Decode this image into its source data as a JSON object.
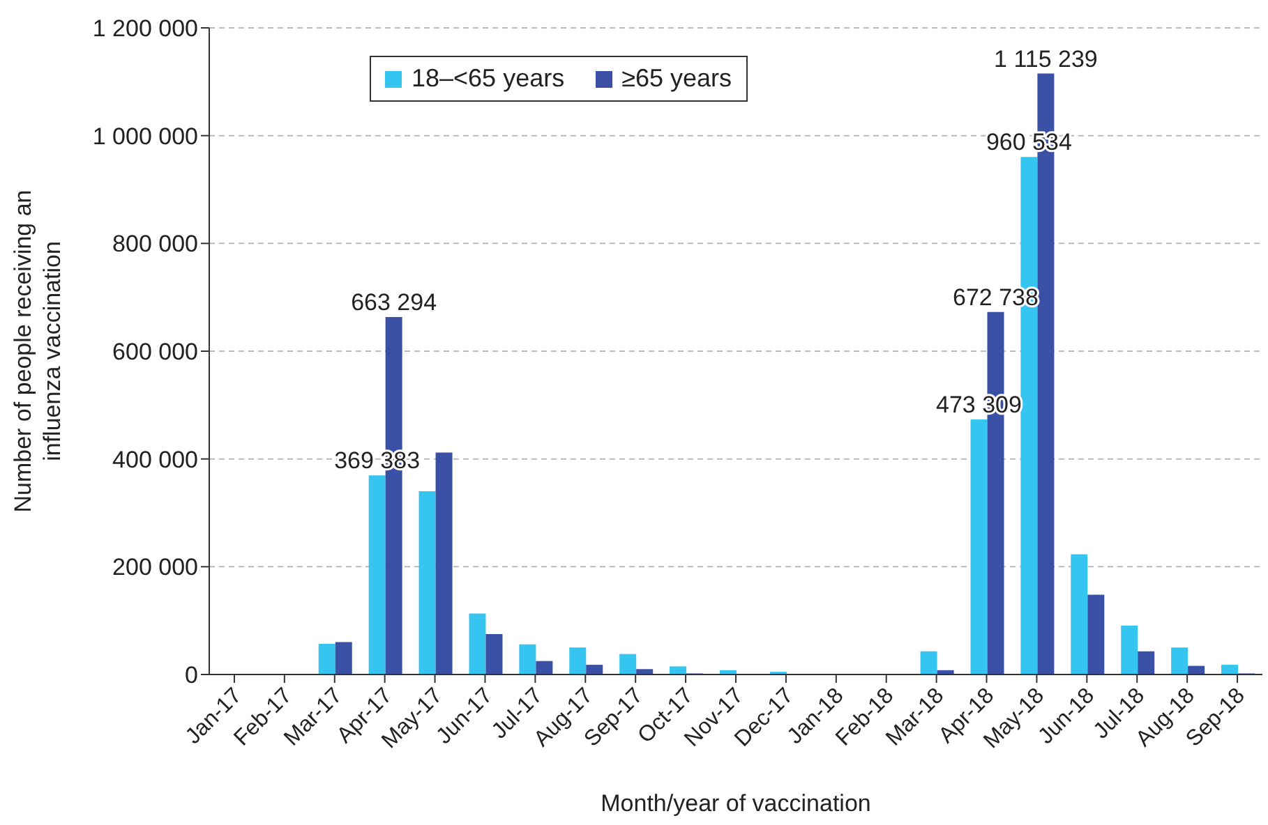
{
  "chart_data": {
    "type": "bar",
    "xlabel": "Month/year of vaccination",
    "ylabel": "Number of people receiving an influenza vaccination",
    "categories": [
      "Jan-17",
      "Feb-17",
      "Mar-17",
      "Apr-17",
      "May-17",
      "Jun-17",
      "Jul-17",
      "Aug-17",
      "Sep-17",
      "Oct-17",
      "Nov-17",
      "Dec-17",
      "Jan-18",
      "Feb-18",
      "Mar-18",
      "Apr-18",
      "May-18",
      "Jun-18",
      "Jul-18",
      "Aug-18",
      "Sep-18"
    ],
    "series": [
      {
        "name": "18–<65 years",
        "color": "#36c5f0",
        "values": [
          0,
          0,
          57000,
          369383,
          340000,
          113000,
          56000,
          50000,
          38000,
          15000,
          8000,
          5000,
          0,
          0,
          43000,
          473309,
          960534,
          223000,
          91000,
          50000,
          18000
        ],
        "value_labels": [
          null,
          null,
          null,
          "369 383",
          null,
          null,
          null,
          null,
          null,
          null,
          null,
          null,
          null,
          null,
          null,
          "473 309",
          "960 534",
          null,
          null,
          null,
          null
        ]
      },
      {
        "name": "≥65 years",
        "color": "#3a50a5",
        "values": [
          0,
          0,
          60000,
          663294,
          412000,
          75000,
          25000,
          18000,
          10000,
          2000,
          0,
          0,
          0,
          0,
          8000,
          672738,
          1115239,
          148000,
          43000,
          16000,
          2000
        ],
        "value_labels": [
          null,
          null,
          null,
          "663 294",
          null,
          null,
          null,
          null,
          null,
          null,
          null,
          null,
          null,
          null,
          null,
          "672 738",
          "1 115 239",
          null,
          null,
          null,
          null
        ]
      }
    ],
    "ylim": [
      0,
      1200000
    ],
    "yticks": [
      0,
      {
        "value": 200000,
        "label": "200 000"
      },
      {
        "value": 400000,
        "label": "400 000"
      },
      {
        "value": 600000,
        "label": "600 000"
      },
      {
        "value": 800000,
        "label": "800 000"
      },
      {
        "value": 1000000,
        "label": "1 000 000"
      },
      {
        "value": 1200000,
        "label": "1 200 000"
      }
    ],
    "grid": "y",
    "legend": "top"
  }
}
